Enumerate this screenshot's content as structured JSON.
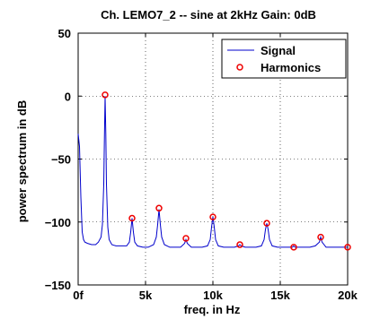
{
  "chart_data": {
    "type": "line",
    "title": "Ch. LEMO7_2 -- sine at 2kHz  Gain: 0dB",
    "xlabel": "freq. in Hz",
    "ylabel": "power spectrum in dB",
    "xlim": [
      0,
      20000
    ],
    "ylim": [
      -150,
      50
    ],
    "x_ticks": [
      0,
      5000,
      10000,
      15000,
      20000
    ],
    "x_tick_labels": [
      "0f",
      "5k",
      "10k",
      "15k",
      "20k"
    ],
    "y_ticks": [
      -150,
      -100,
      -50,
      0,
      50
    ],
    "y_tick_labels": [
      "−150",
      "−100",
      "−50",
      "0",
      "50"
    ],
    "grid": true,
    "legend_position": "top-right",
    "series": [
      {
        "name": "Signal",
        "style": "line",
        "color": "#0000cc",
        "x": [
          0,
          100,
          200,
          300,
          400,
          500,
          700,
          1000,
          1300,
          1500,
          1700,
          1800,
          1900,
          1950,
          2000,
          2050,
          2100,
          2200,
          2300,
          2500,
          2800,
          3200,
          3600,
          3800,
          3900,
          4000,
          4100,
          4200,
          4400,
          4800,
          5200,
          5600,
          5800,
          5900,
          6000,
          6100,
          6200,
          6400,
          6800,
          7200,
          7600,
          7900,
          8000,
          8100,
          8400,
          8800,
          9200,
          9600,
          9800,
          9900,
          10000,
          10100,
          10200,
          10400,
          10800,
          11200,
          11600,
          11900,
          12000,
          12100,
          12400,
          12800,
          13200,
          13600,
          13800,
          13900,
          14000,
          14100,
          14200,
          14400,
          14800,
          15200,
          15600,
          15900,
          16000,
          16100,
          16400,
          16800,
          17200,
          17600,
          17900,
          18000,
          18100,
          18400,
          18800,
          19200,
          19600,
          19900,
          20000
        ],
        "y": [
          -30,
          -40,
          -80,
          -108,
          -114,
          -116,
          -117,
          -118,
          -118,
          -116,
          -112,
          -102,
          -70,
          -30,
          0,
          -30,
          -70,
          -104,
          -114,
          -118,
          -119,
          -119,
          -119,
          -116,
          -108,
          -97,
          -108,
          -116,
          -119,
          -120,
          -120,
          -118,
          -112,
          -102,
          -90,
          -102,
          -112,
          -118,
          -120,
          -120,
          -120,
          -117,
          -114,
          -117,
          -120,
          -120,
          -120,
          -119,
          -114,
          -104,
          -96,
          -104,
          -114,
          -119,
          -120,
          -120,
          -120,
          -119,
          -118,
          -119,
          -120,
          -120,
          -120,
          -119,
          -114,
          -106,
          -101,
          -106,
          -114,
          -119,
          -120,
          -120,
          -120,
          -120,
          -119,
          -120,
          -120,
          -120,
          -120,
          -119,
          -116,
          -112,
          -116,
          -120,
          -120,
          -120,
          -120,
          -120,
          -120
        ]
      },
      {
        "name": "Harmonics",
        "style": "markers",
        "color": "#ee0000",
        "x": [
          2000,
          4000,
          6000,
          8000,
          10000,
          12000,
          14000,
          16000,
          18000,
          20000
        ],
        "y": [
          1,
          -97,
          -89,
          -113,
          -96,
          -118,
          -101,
          -120,
          -112,
          -120
        ]
      }
    ]
  }
}
